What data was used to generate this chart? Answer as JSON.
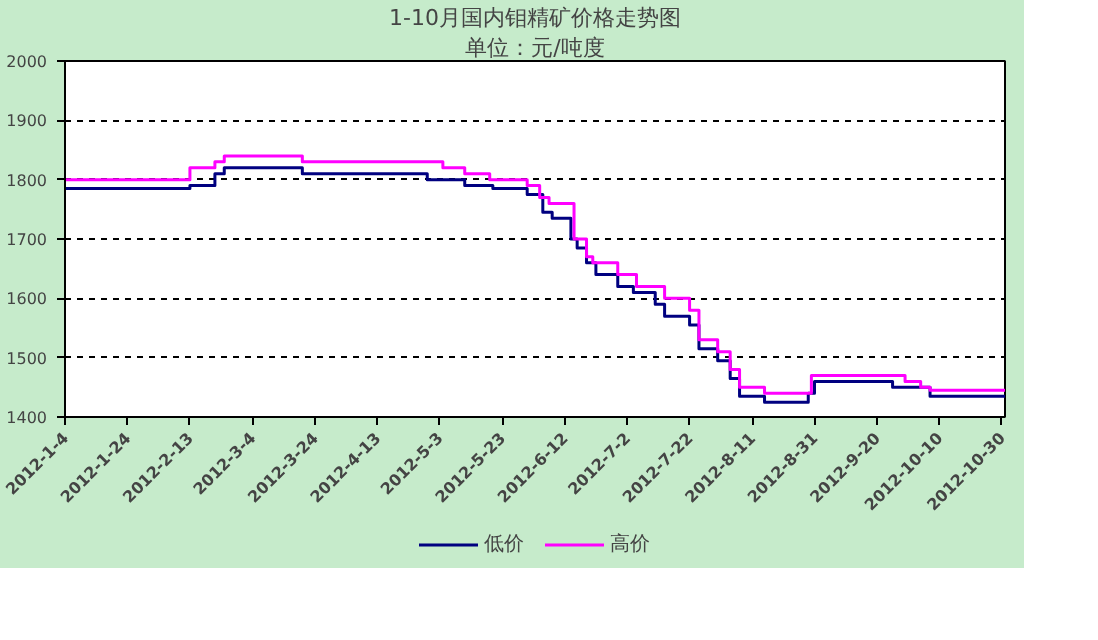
{
  "chart_data": {
    "type": "step",
    "title": "1-10月国内钼精矿价格走势图",
    "subtitle": "单位：元/吨度",
    "x": [
      "2012-01-04",
      "2012-02-13",
      "2012-02-21",
      "2012-02-24",
      "2012-03-20",
      "2012-04-29",
      "2012-05-11",
      "2012-05-20",
      "2012-05-31",
      "2012-06-05",
      "2012-06-08",
      "2012-06-14",
      "2012-06-16",
      "2012-06-19",
      "2012-06-22",
      "2012-06-29",
      "2012-07-04",
      "2012-07-11",
      "2012-07-14",
      "2012-07-22",
      "2012-07-25",
      "2012-07-31",
      "2012-08-04",
      "2012-08-07",
      "2012-08-15",
      "2012-08-29",
      "2012-08-31",
      "2012-09-25",
      "2012-10-07",
      "2012-10-31"
    ],
    "series": [
      {
        "name": "低价",
        "color": "#000080",
        "values": [
          1785,
          1790,
          1810,
          1820,
          1810,
          1800,
          1790,
          1785,
          1775,
          1745,
          1735,
          1700,
          1685,
          1660,
          1640,
          1620,
          1610,
          1590,
          1570,
          1555,
          1515,
          1495,
          1465,
          1435,
          1425,
          1440,
          1460,
          1450,
          1435,
          1435
        ]
      },
      {
        "name": "高价",
        "color": "#ff00ff",
        "x": [
          "2012-01-04",
          "2012-02-13",
          "2012-02-21",
          "2012-02-24",
          "2012-03-20",
          "2012-05-04",
          "2012-05-11",
          "2012-05-19",
          "2012-05-31",
          "2012-06-04",
          "2012-06-07",
          "2012-06-15",
          "2012-06-19",
          "2012-06-21",
          "2012-06-29",
          "2012-07-05",
          "2012-07-14",
          "2012-07-22",
          "2012-07-25",
          "2012-07-31",
          "2012-08-04",
          "2012-08-07",
          "2012-08-15",
          "2012-08-30",
          "2012-09-29",
          "2012-10-04",
          "2012-10-07",
          "2012-10-31"
        ],
        "values": [
          1800,
          1820,
          1830,
          1840,
          1830,
          1820,
          1810,
          1800,
          1790,
          1770,
          1760,
          1700,
          1670,
          1660,
          1640,
          1620,
          1600,
          1580,
          1530,
          1510,
          1480,
          1450,
          1440,
          1470,
          1460,
          1450,
          1445,
          1445
        ]
      }
    ],
    "xlim": [
      "2012-01-04",
      "2012-10-31"
    ],
    "xticks": [
      {
        "value": "2012-01-04",
        "label": "2012-1-4"
      },
      {
        "value": "2012-01-24",
        "label": "2012-1-24"
      },
      {
        "value": "2012-02-13",
        "label": "2012-2-13"
      },
      {
        "value": "2012-03-04",
        "label": "2012-3-4"
      },
      {
        "value": "2012-03-24",
        "label": "2012-3-24"
      },
      {
        "value": "2012-04-13",
        "label": "2012-4-13"
      },
      {
        "value": "2012-05-03",
        "label": "2012-5-3"
      },
      {
        "value": "2012-05-23",
        "label": "2012-5-23"
      },
      {
        "value": "2012-06-12",
        "label": "2012-6-12"
      },
      {
        "value": "2012-07-02",
        "label": "2012-7-2"
      },
      {
        "value": "2012-07-22",
        "label": "2012-7-22"
      },
      {
        "value": "2012-08-11",
        "label": "2012-8-11"
      },
      {
        "value": "2012-08-31",
        "label": "2012-8-31"
      },
      {
        "value": "2012-09-20",
        "label": "2012-9-20"
      },
      {
        "value": "2012-10-10",
        "label": "2012-10-10"
      },
      {
        "value": "2012-10-30",
        "label": "2012-10-30"
      }
    ],
    "ylim": [
      1400,
      2000
    ],
    "yticks": [
      1400,
      1500,
      1600,
      1700,
      1800,
      1900,
      2000
    ],
    "grid": "y",
    "legend": "bottom"
  }
}
